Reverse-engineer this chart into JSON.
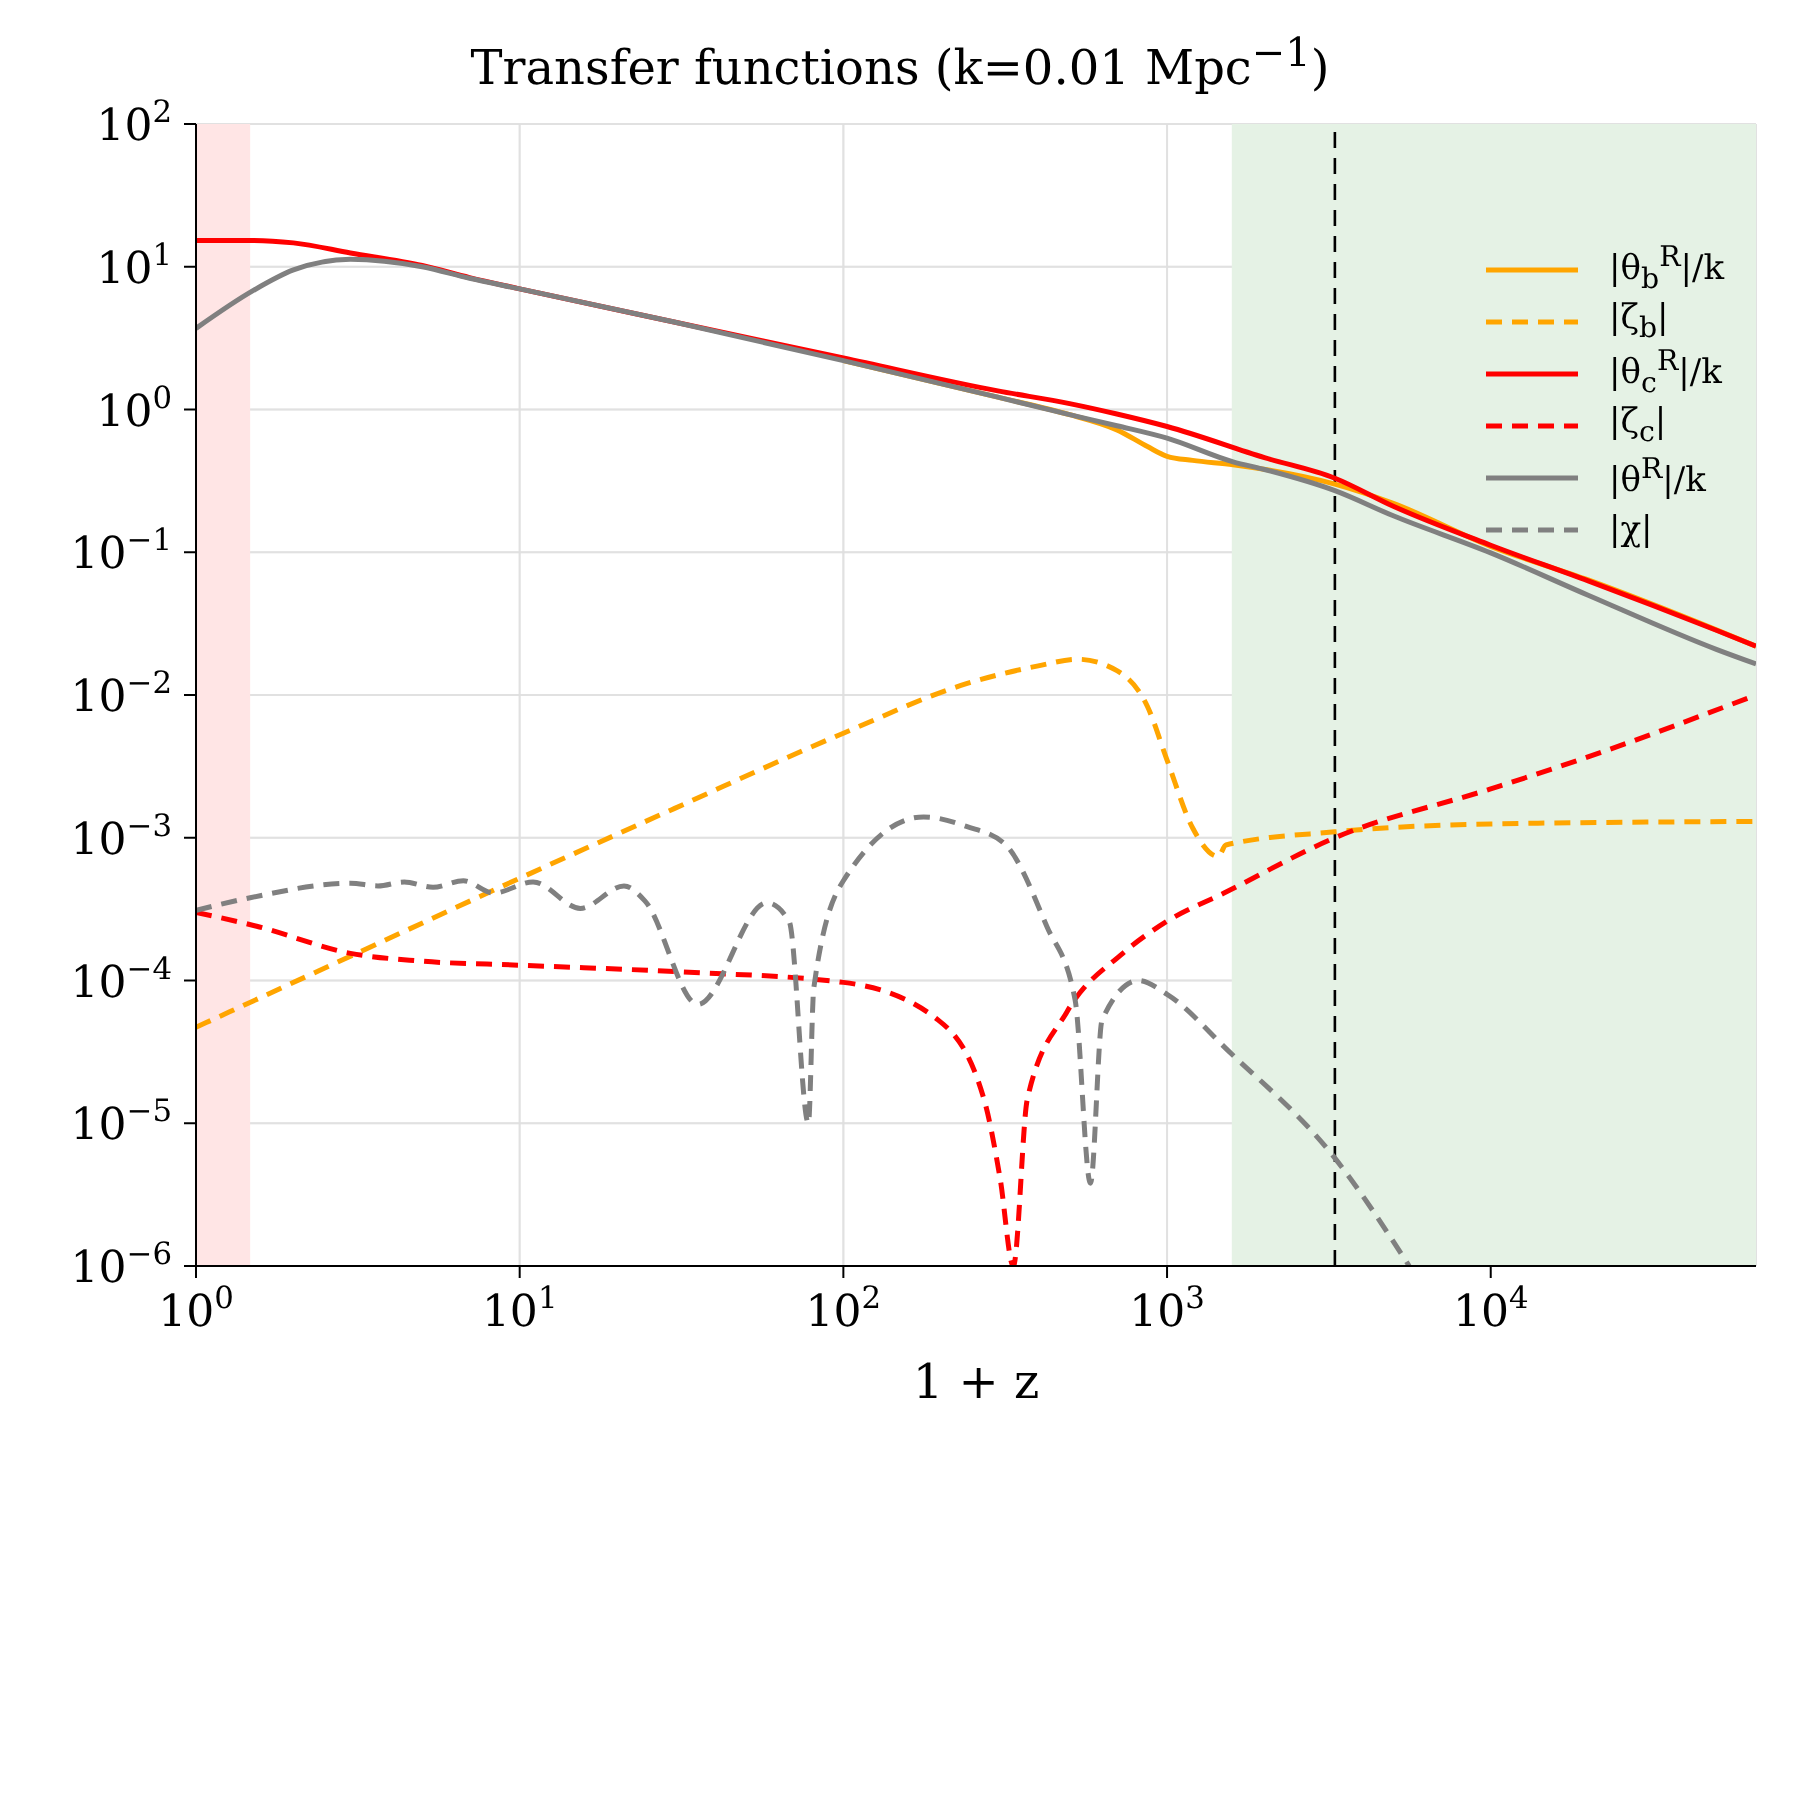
{
  "chart_data": {
    "type": "line",
    "title": "Transfer functions (k=0.01 Mpc$^{−1}$)",
    "xlabel": "1 + z",
    "log": "xy",
    "grid": true,
    "legend": "top right",
    "xlim": [
      1,
      66000
    ],
    "xticks": [
      {
        "value": 1,
        "label": "10$^{0}$"
      },
      {
        "value": 10,
        "label": "10$^{1}$"
      },
      {
        "value": 100,
        "label": "10$^{2}$"
      },
      {
        "value": 1000,
        "label": "10$^{3}$"
      },
      {
        "value": 10000,
        "label": "10$^{4}$"
      }
    ],
    "ylim": [
      1e-06,
      100
    ],
    "yticks": [
      {
        "value": 1e-06,
        "label": "10$^{−6}$"
      },
      {
        "value": 1e-05,
        "label": "10$^{−5}$"
      },
      {
        "value": 0.0001,
        "label": "10$^{−4}$"
      },
      {
        "value": 0.001,
        "label": "10$^{−3}$"
      },
      {
        "value": 0.01,
        "label": "10$^{−2}$"
      },
      {
        "value": 0.1,
        "label": "10$^{−1}$"
      },
      {
        "value": 1,
        "label": "10$^{0}$"
      },
      {
        "value": 10,
        "label": "10$^{1}$"
      },
      {
        "value": 100,
        "label": "10$^{2}$"
      }
    ],
    "bands": [
      {
        "axis": "x",
        "from": 1,
        "to": 1.47,
        "color": "#ffe5e5"
      },
      {
        "axis": "x",
        "from": 1585,
        "to": 66000,
        "color": "#e5f2e5"
      }
    ],
    "ref_lines": [
      {
        "axis": "x",
        "value": 3300,
        "color": "#000000",
        "line_style": "dashed"
      }
    ],
    "series": [
      {
        "name": "|θ$_{b}$$^{R}$|/k",
        "color": "#ffa500",
        "line_style": "solid",
        "x": [
          100,
          300,
          500,
          700,
          870,
          1000,
          1200,
          1600,
          3300,
          5000,
          10000,
          20000,
          50000,
          66000
        ],
        "values": [
          2.2,
          1.22,
          0.92,
          0.72,
          0.55,
          0.47,
          0.44,
          0.41,
          0.3,
          0.22,
          0.11,
          0.064,
          0.0285,
          0.022
        ]
      },
      {
        "name": "|ζ$_{b}$|",
        "color": "#ffa500",
        "line_style": "dashed",
        "x": [
          1,
          3,
          10,
          30,
          100,
          240,
          400,
          530,
          700,
          870,
          1000,
          1200,
          1440,
          1520,
          3300,
          10000,
          66000
        ],
        "values": [
          4.7e-05,
          0.000148,
          0.00052,
          0.0016,
          0.0054,
          0.012,
          0.016,
          0.0178,
          0.0148,
          0.0083,
          0.0035,
          0.00117,
          0.00074,
          0.00089,
          0.0011,
          0.00125,
          0.0013
        ]
      },
      {
        "name": "|θ$_{c}$$^{R}$|/k",
        "color": "#ff0000",
        "line_style": "solid",
        "x": [
          1,
          1.5,
          2,
          3,
          5,
          7,
          10,
          30,
          100,
          300,
          500,
          700,
          1000,
          2000,
          3300,
          5000,
          10000,
          20000,
          50000,
          66000
        ],
        "values": [
          15.3,
          15.3,
          14.7,
          12.5,
          10.2,
          8.4,
          7.0,
          4.1,
          2.3,
          1.35,
          1.1,
          0.93,
          0.76,
          0.46,
          0.33,
          0.21,
          0.112,
          0.063,
          0.0283,
          0.022
        ]
      },
      {
        "name": "|ζ$_{c}$|",
        "color": "#ff0000",
        "line_style": "dashed",
        "x": [
          1,
          1.54,
          3,
          4.9,
          10,
          31,
          100,
          196,
          272,
          305,
          335,
          370,
          490,
          730,
          1000,
          1500,
          3300,
          10000,
          18000,
          66000
        ],
        "values": [
          0.0003,
          0.00024,
          0.000155,
          0.000137,
          0.000128,
          0.000115,
          9.7e-05,
          5.3e-05,
          1.47e-05,
          4.1e-06,
          1e-06,
          1.47e-05,
          6e-05,
          0.000155,
          0.00026,
          0.00041,
          0.001,
          0.0022,
          0.0034,
          0.01
        ]
      },
      {
        "name": "|θ$^{R}$|/k",
        "color": "#808080",
        "line_style": "solid",
        "x": [
          1,
          1.5,
          2,
          3,
          5,
          7,
          10,
          30,
          100,
          300,
          500,
          700,
          1000,
          1600,
          2000,
          3300,
          5000,
          10000,
          20000,
          50000,
          66000
        ],
        "values": [
          3.7,
          6.8,
          9.5,
          11.3,
          10,
          8.3,
          7.0,
          4.1,
          2.2,
          1.22,
          0.92,
          0.77,
          0.63,
          0.43,
          0.38,
          0.27,
          0.18,
          0.099,
          0.05,
          0.0208,
          0.0165
        ]
      },
      {
        "name": "|χ|",
        "color": "#808080",
        "line_style": "dashed",
        "x": [
          1,
          1.47,
          3,
          3.65,
          4.4,
          5.4,
          6.7,
          8.3,
          11,
          15.4,
          21,
          24.4,
          35.5,
          58,
          68,
          78,
          81,
          100,
          177,
          240,
          316,
          425,
          520,
          580,
          630,
          815,
          1000,
          1550,
          3300,
          5600
        ],
        "values": [
          0.00031,
          0.00038,
          0.00048,
          0.00046,
          0.00049,
          0.00045,
          0.0005,
          0.00041,
          0.00049,
          0.00032,
          0.00046,
          0.00036,
          6.8e-05,
          0.00035,
          0.00026,
          1e-05,
          8.8e-05,
          0.0005,
          0.0014,
          0.0012,
          0.0009,
          0.00024,
          7.3e-05,
          3.8e-06,
          5.3e-05,
          0.0001,
          8e-05,
          3.2e-05,
          5.7e-06,
          1e-06
        ]
      }
    ]
  }
}
